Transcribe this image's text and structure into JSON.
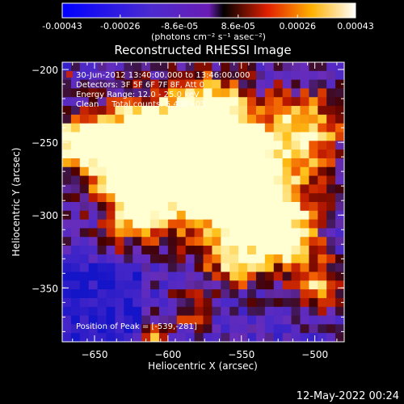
{
  "colorbar": {
    "ticks": [
      "-0.00043",
      "-0.00026",
      "-8.6e-05",
      "8.6e-05",
      "0.00026",
      "0.00043"
    ],
    "tick_values": [
      -0.00043,
      -0.00026,
      -8.6e-05,
      8.6e-05,
      0.00026,
      0.00043
    ],
    "range": [
      -0.00043,
      0.00043
    ],
    "label": "(photons cm⁻² s⁻¹ asec⁻²)"
  },
  "info": {
    "time": "30-Jun-2012 13:40:00.000 to 13:46:00.000",
    "detectors": "Detectors: 3F 5F 6F 7F 8F, Att 0",
    "energy": "Energy Range: 12.0 - 25.0 keV",
    "clean": "Clean     Total counts: 5.40E+03",
    "peak": "Position of Peak = [-539,-281]"
  },
  "footer": {
    "timestamp": "12-May-2022 00:24"
  },
  "chart_data": {
    "type": "heatmap",
    "title": "Reconstructed RHESSI Image",
    "xlabel": "Heliocentric X (arcsec)",
    "ylabel": "Heliocentric Y (arcsec)",
    "xlim": [
      -672,
      -480
    ],
    "ylim": [
      -387,
      -195
    ],
    "xticks": [
      -650,
      -600,
      -550,
      -500
    ],
    "yticks": [
      -200,
      -250,
      -300,
      -350
    ],
    "colormap": "rhessi-blue-purple-red-yellow",
    "peak": [
      -539,
      -281
    ]
  }
}
